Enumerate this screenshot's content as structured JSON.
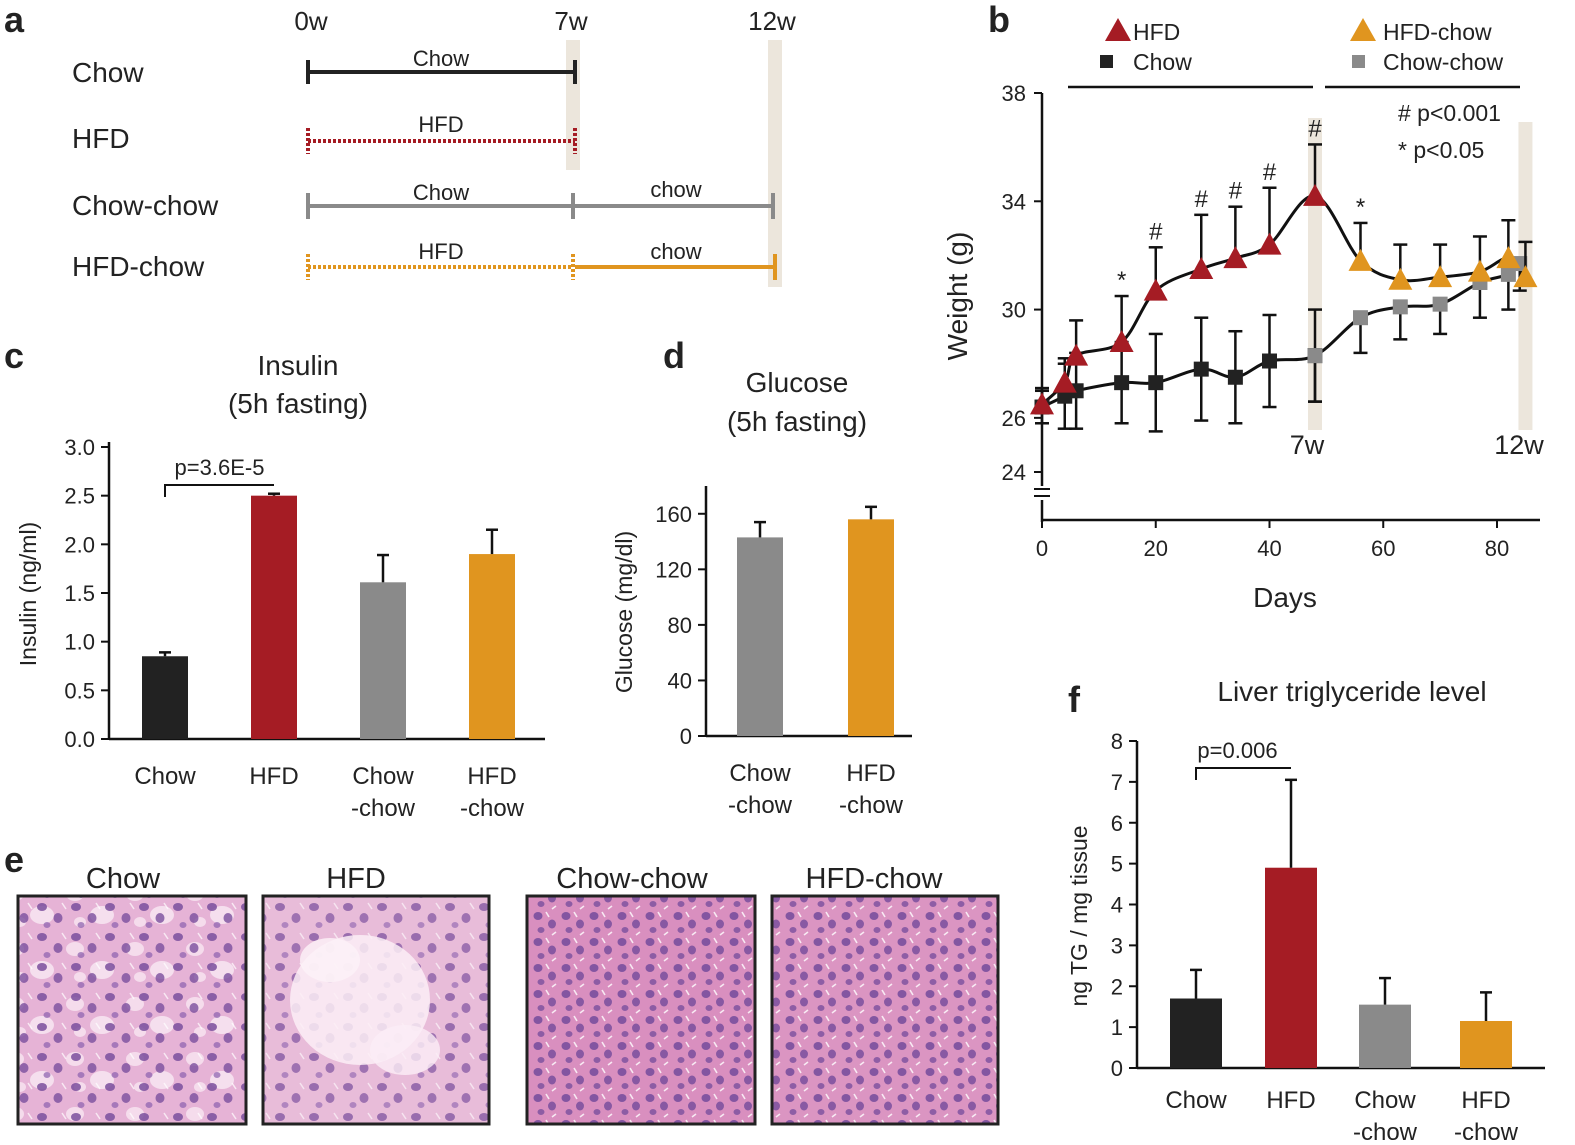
{
  "colors": {
    "chow": "#222222",
    "hfd": "#a51c24",
    "chowchow": "#8a8a8a",
    "hfdchow": "#e0951f",
    "axis": "#111111",
    "shade": "#ece6dc",
    "he_light": "#f0d0e4",
    "he_pink": "#d88fbd",
    "he_nuc": "#7a4f9e"
  },
  "panel_a": {
    "letter": "a",
    "timepoints": [
      "0w",
      "7w",
      "12w"
    ],
    "rows": [
      {
        "label": "Chow",
        "seg1": "Chow",
        "seg2": ""
      },
      {
        "label": "HFD",
        "seg1": "HFD",
        "seg2": ""
      },
      {
        "label": "Chow-chow",
        "seg1": "Chow",
        "seg2": "chow"
      },
      {
        "label": "HFD-chow",
        "seg1": "HFD",
        "seg2": "chow"
      }
    ]
  },
  "chart_data": [
    {
      "id": "b",
      "type": "line",
      "letter": "b",
      "xlabel": "Days",
      "ylabel": "Weight (g)",
      "xlim": [
        0,
        90
      ],
      "ylim": [
        24,
        38
      ],
      "xticks": [
        0,
        20,
        40,
        60,
        80
      ],
      "yticks": [
        24,
        26,
        30,
        34,
        38
      ],
      "legend": [
        {
          "name": "HFD",
          "marker": "triangle"
        },
        {
          "name": "Chow",
          "marker": "square"
        },
        {
          "name": "HFD-chow",
          "marker": "triangle"
        },
        {
          "name": "Chow-chow",
          "marker": "square"
        }
      ],
      "annotations": {
        "sig1": "# p<0.001",
        "sig2": "* p<0.05",
        "t7": "7w",
        "t12": "12w"
      },
      "series": [
        {
          "name": "HFD",
          "x": [
            0,
            4,
            6,
            14,
            20,
            28,
            34,
            40,
            48
          ],
          "y": [
            26.5,
            27.3,
            28.3,
            28.8,
            30.7,
            31.5,
            31.9,
            32.4,
            34.2
          ],
          "err": [
            0.6,
            0.9,
            1.3,
            1.7,
            1.6,
            2.0,
            1.9,
            2.1,
            1.9
          ],
          "sig": [
            "",
            "",
            "",
            "*",
            "#",
            "#",
            "#",
            "#",
            "#"
          ]
        },
        {
          "name": "Chow",
          "x": [
            0,
            4,
            6,
            14,
            20,
            28,
            34,
            40,
            48
          ],
          "y": [
            26.4,
            26.8,
            27.0,
            27.3,
            27.3,
            27.8,
            27.5,
            28.1,
            28.3
          ],
          "err": [
            0.6,
            1.2,
            1.4,
            1.5,
            1.8,
            1.9,
            1.7,
            1.7,
            1.7
          ],
          "sig": [
            "",
            "",
            "",
            "",
            "",
            "",
            "",
            "",
            ""
          ]
        },
        {
          "name": "HFD-chow",
          "x": [
            56,
            63,
            70,
            77,
            82,
            85
          ],
          "y": [
            31.8,
            31.1,
            31.2,
            31.4,
            31.9,
            31.2
          ],
          "err": [
            1.4,
            1.3,
            1.2,
            1.3,
            1.4,
            1.3
          ],
          "sig": [
            "*",
            "",
            "",
            "",
            "",
            ""
          ]
        },
        {
          "name": "Chow-chow",
          "x": [
            48,
            56,
            63,
            70,
            77,
            82,
            84
          ],
          "y": [
            28.3,
            29.7,
            30.1,
            30.2,
            31.0,
            31.3,
            31.7
          ],
          "err": [
            1.7,
            1.3,
            1.2,
            1.1,
            1.3,
            1.3,
            1.0
          ],
          "sig": [
            "",
            "",
            "",
            "",
            "",
            "",
            ""
          ]
        }
      ]
    },
    {
      "id": "c",
      "type": "bar",
      "letter": "c",
      "title": [
        "Insulin",
        "(5h fasting)"
      ],
      "ylabel": "Insulin (ng/ml)",
      "ylim": [
        0,
        3.0
      ],
      "yticks": [
        "0.0",
        "0.5",
        "1.0",
        "1.5",
        "2.0",
        "2.5",
        "3.0"
      ],
      "categories": [
        [
          "Chow"
        ],
        [
          "HFD"
        ],
        [
          "Chow",
          "-chow"
        ],
        [
          "HFD",
          "-chow"
        ]
      ],
      "values": [
        0.85,
        2.5,
        1.61,
        1.9
      ],
      "err": [
        0.04,
        0.02,
        0.28,
        0.25
      ],
      "pvalue": "p=3.6E-5"
    },
    {
      "id": "d",
      "type": "bar",
      "letter": "d",
      "title": [
        "Glucose",
        "(5h fasting)"
      ],
      "ylabel": "Glucose (mg/dl)",
      "ylim": [
        0,
        180
      ],
      "yticks": [
        "0",
        "40",
        "80",
        "120",
        "160"
      ],
      "categories": [
        [
          "Chow",
          "-chow"
        ],
        [
          "HFD",
          "-chow"
        ]
      ],
      "values": [
        143,
        156
      ],
      "err": [
        11,
        9
      ]
    },
    {
      "id": "f",
      "type": "bar",
      "letter": "f",
      "title": [
        "Liver triglyceride level"
      ],
      "ylabel": "ng TG / mg tissue",
      "ylim": [
        0,
        8
      ],
      "yticks": [
        "0",
        "1",
        "2",
        "3",
        "4",
        "5",
        "6",
        "7",
        "8"
      ],
      "categories": [
        [
          "Chow"
        ],
        [
          "HFD"
        ],
        [
          "Chow",
          "-chow"
        ],
        [
          "HFD",
          "-chow"
        ]
      ],
      "values": [
        1.7,
        4.9,
        1.55,
        1.15
      ],
      "err": [
        0.7,
        2.15,
        0.65,
        0.7
      ],
      "pvalue": "p=0.006"
    }
  ],
  "panel_e": {
    "letter": "e",
    "images": [
      "Chow",
      "HFD",
      "Chow-chow",
      "HFD-chow"
    ]
  }
}
